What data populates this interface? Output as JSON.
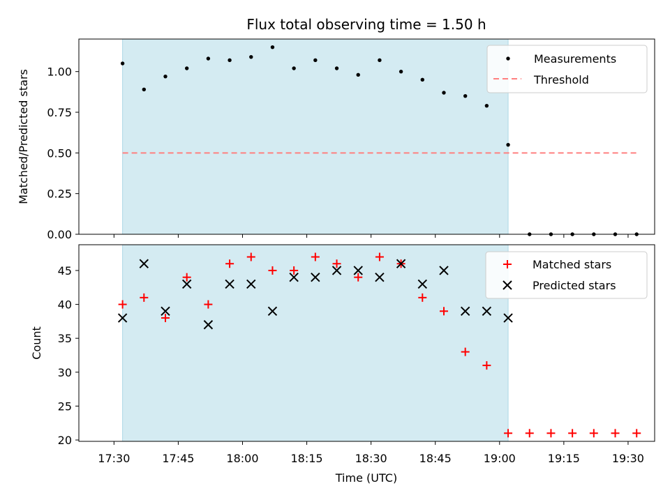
{
  "chart_data": {
    "type": "scatter",
    "title": "Flux total observing time = 1.50 h",
    "x_unit": "minutes since 17:30 UTC",
    "xlim": [
      -8.2,
      126.2
    ],
    "xticks": [
      {
        "value": 0,
        "label": "17:30"
      },
      {
        "value": 15,
        "label": "17:45"
      },
      {
        "value": 30,
        "label": "18:00"
      },
      {
        "value": 45,
        "label": "18:15"
      },
      {
        "value": 60,
        "label": "18:30"
      },
      {
        "value": 75,
        "label": "18:45"
      },
      {
        "value": 90,
        "label": "19:00"
      },
      {
        "value": 105,
        "label": "19:15"
      },
      {
        "value": 120,
        "label": "19:30"
      }
    ],
    "xlabel": "Time (UTC)",
    "shaded_span": [
      2,
      92
    ],
    "panels": [
      {
        "ylabel": "Matched/Predicted stars",
        "ylim": [
          0,
          1.2
        ],
        "yticks": [
          {
            "value": 0.0,
            "label": "0.00"
          },
          {
            "value": 0.25,
            "label": "0.25"
          },
          {
            "value": 0.5,
            "label": "0.50"
          },
          {
            "value": 0.75,
            "label": "0.75"
          },
          {
            "value": 1.0,
            "label": "1.00"
          }
        ],
        "threshold": 0.5,
        "threshold_range": [
          2,
          122
        ],
        "legend": {
          "measurements": "Measurements",
          "threshold": "Threshold"
        },
        "series": [
          {
            "name": "Measurements",
            "x": [
              2,
              7,
              12,
              17,
              22,
              27,
              32,
              37,
              42,
              47,
              52,
              57,
              62,
              67,
              72,
              77,
              82,
              87,
              92,
              97,
              102,
              107,
              112,
              117,
              122
            ],
            "y": [
              1.05,
              0.89,
              0.97,
              1.02,
              1.08,
              1.07,
              1.09,
              1.15,
              1.02,
              1.07,
              1.02,
              0.98,
              1.07,
              1.0,
              0.95,
              0.87,
              0.85,
              0.79,
              0.55,
              0.0,
              0.0,
              0.0,
              0.0,
              0.0,
              0.0
            ]
          }
        ]
      },
      {
        "ylabel": "Count",
        "ylim": [
          19.8,
          48.8
        ],
        "yticks": [
          {
            "value": 20,
            "label": "20"
          },
          {
            "value": 25,
            "label": "25"
          },
          {
            "value": 30,
            "label": "30"
          },
          {
            "value": 35,
            "label": "35"
          },
          {
            "value": 40,
            "label": "40"
          },
          {
            "value": 45,
            "label": "45"
          }
        ],
        "legend": {
          "matched": "Matched stars",
          "predicted": "Predicted stars"
        },
        "series": [
          {
            "name": "Matched stars",
            "color": "#ff0000",
            "marker": "plus",
            "x": [
              2,
              7,
              12,
              17,
              22,
              27,
              32,
              37,
              42,
              47,
              52,
              57,
              62,
              67,
              72,
              77,
              82,
              87,
              92,
              97,
              102,
              107,
              112,
              117,
              122
            ],
            "y": [
              40,
              41,
              38,
              44,
              40,
              46,
              47,
              45,
              45,
              47,
              46,
              44,
              47,
              46,
              41,
              39,
              33,
              31,
              21,
              21,
              21,
              21,
              21,
              21,
              21
            ]
          },
          {
            "name": "Predicted stars",
            "color": "#000000",
            "marker": "x",
            "x": [
              2,
              7,
              12,
              17,
              22,
              27,
              32,
              37,
              42,
              47,
              52,
              57,
              62,
              67,
              72,
              77,
              82,
              87,
              92
            ],
            "y": [
              38,
              46,
              39,
              43,
              37,
              43,
              43,
              39,
              44,
              44,
              45,
              45,
              44,
              46,
              43,
              45,
              39,
              39,
              38
            ]
          }
        ]
      }
    ]
  },
  "colors": {
    "shade": "#add8e6",
    "threshold": "#ff7f7f",
    "measurement": "#000000",
    "matched": "#ff0000",
    "predicted": "#000000"
  }
}
